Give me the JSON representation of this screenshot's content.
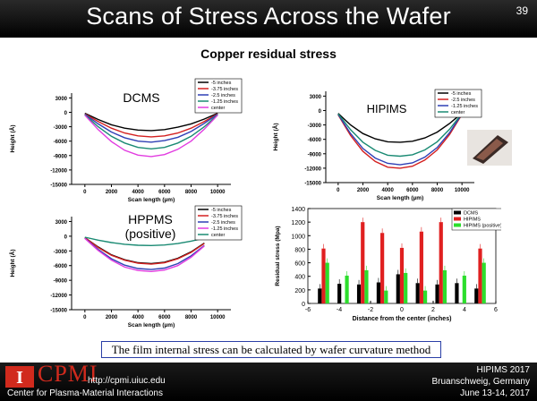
{
  "slide": {
    "title": "Scans of Stress Across the Wafer",
    "number": "39",
    "subtitle": "Copper residual stress",
    "caption": "The film internal stress can be calculated by wafer curvature method"
  },
  "footer": {
    "org": "CPMI",
    "url": "http://cpmi.uiuc.edu",
    "center_name": "Center for Plasma-Material Interactions",
    "conf_line1": "HIPIMS 2017",
    "conf_line2": "Bruanschweig, Germany",
    "conf_line3": "June 13-14, 2017"
  },
  "colors": {
    "header_bg": "#000000",
    "cpmi_red": "#d12a1d",
    "caption_border": "#2a3fa6"
  },
  "chart_data": [
    {
      "id": "dcms",
      "type": "line",
      "title": "DCMS",
      "xlabel": "Scan length (µm)",
      "ylabel": "Height (Å)",
      "xlim": [
        -1000,
        11000
      ],
      "ylim": [
        -15000,
        4000
      ],
      "xticks": [
        "0",
        "2000",
        "4000",
        "6000",
        "8000",
        "10000"
      ],
      "yticks": [
        "3000",
        "0",
        "-3000",
        "-6000",
        "-9000",
        "-12000",
        "-15000"
      ],
      "legend": [
        "-5 inches",
        "-3.75 inches",
        "-2.5 inches",
        "-1.25 inches",
        "center"
      ],
      "series": [
        {
          "name": "-5 inches",
          "color": "#000000",
          "x": [
            0,
            1000,
            2000,
            3000,
            4000,
            5000,
            6000,
            7000,
            8000,
            9000,
            10000
          ],
          "y": [
            -200,
            -1500,
            -2600,
            -3300,
            -3700,
            -3800,
            -3600,
            -3100,
            -2400,
            -1400,
            -200
          ]
        },
        {
          "name": "-3.75 inches",
          "color": "#d42020",
          "x": [
            0,
            1000,
            2000,
            3000,
            4000,
            5000,
            6000,
            7000,
            8000,
            9000,
            10000
          ],
          "y": [
            -300,
            -1900,
            -3300,
            -4300,
            -4900,
            -5100,
            -4900,
            -4300,
            -3300,
            -1900,
            -300
          ]
        },
        {
          "name": "-2.5 inches",
          "color": "#2f3fb5",
          "x": [
            0,
            1000,
            2000,
            3000,
            4000,
            5000,
            6000,
            7000,
            8000,
            9000,
            10000
          ],
          "y": [
            -400,
            -2400,
            -4100,
            -5300,
            -6000,
            -6200,
            -5900,
            -5200,
            -4000,
            -2300,
            -400
          ]
        },
        {
          "name": "-1.25 inches",
          "color": "#1a8a73",
          "x": [
            0,
            1000,
            2000,
            3000,
            4000,
            5000,
            6000,
            7000,
            8000,
            9000,
            10000
          ],
          "y": [
            -500,
            -3000,
            -5000,
            -6400,
            -7300,
            -7600,
            -7300,
            -6400,
            -5000,
            -3000,
            -500
          ]
        },
        {
          "name": "center",
          "color": "#e23ce0",
          "x": [
            0,
            1000,
            2000,
            3000,
            4000,
            5000,
            6000,
            7000,
            8000,
            9000,
            10000
          ],
          "y": [
            -600,
            -3600,
            -6100,
            -7900,
            -8900,
            -9200,
            -8800,
            -7700,
            -6000,
            -3500,
            -600
          ]
        }
      ]
    },
    {
      "id": "hipims",
      "type": "line",
      "title": "HIPIMS",
      "xlabel": "Scan length (µm)",
      "ylabel": "Height (Å)",
      "xlim": [
        -1000,
        11000
      ],
      "ylim": [
        -15000,
        4000
      ],
      "xticks": [
        "0",
        "2000",
        "4000",
        "6000",
        "8000",
        "10000"
      ],
      "yticks": [
        "3000",
        "0",
        "-3000",
        "-6000",
        "-9000",
        "-12000",
        "-15000"
      ],
      "legend": [
        "-5 inches",
        "-2.5 inches",
        "-1.25 inches",
        "center"
      ],
      "series": [
        {
          "name": "-5 inches",
          "color": "#000000",
          "x": [
            0,
            1000,
            2000,
            3000,
            4000,
            5000,
            6000,
            7000,
            8000,
            9000,
            10000
          ],
          "y": [
            -600,
            -3000,
            -4800,
            -5900,
            -6500,
            -6600,
            -6400,
            -5700,
            -4500,
            -2700,
            -500
          ]
        },
        {
          "name": "-2.5 inches",
          "color": "#d42020",
          "x": [
            0,
            1000,
            2000,
            3000,
            4000,
            5000,
            6000,
            7000,
            8000,
            9000,
            10000
          ],
          "y": [
            -900,
            -5200,
            -8500,
            -10600,
            -11800,
            -12000,
            -11600,
            -10300,
            -8200,
            -5000,
            -800
          ]
        },
        {
          "name": "-1.25 inches",
          "color": "#2f3fb5",
          "x": [
            0,
            1000,
            2000,
            3000,
            4000,
            5000,
            6000,
            7000,
            8000,
            9000,
            10000
          ],
          "y": [
            -800,
            -4800,
            -7900,
            -9900,
            -11000,
            -11300,
            -10900,
            -9700,
            -7700,
            -4600,
            -700
          ]
        },
        {
          "name": "center",
          "color": "#1a8a73",
          "x": [
            0,
            1000,
            2000,
            3000,
            4000,
            5000,
            6000,
            7000,
            8000,
            9000,
            10000
          ],
          "y": [
            -700,
            -4000,
            -6600,
            -8300,
            -9300,
            -9500,
            -9200,
            -8200,
            -6500,
            -3900,
            -600
          ]
        }
      ]
    },
    {
      "id": "hppms",
      "type": "line",
      "title": "HPPMS (positive)",
      "xlabel": "Scan length (µm)",
      "ylabel": "Height (Å)",
      "xlim": [
        -1000,
        11000
      ],
      "ylim": [
        -15000,
        4000
      ],
      "xticks": [
        "0",
        "2000",
        "4000",
        "6000",
        "8000",
        "10000"
      ],
      "yticks": [
        "3000",
        "0",
        "-3000",
        "-6000",
        "-9000",
        "-12000",
        "-15000"
      ],
      "legend": [
        "-5 inches",
        "-3.75 inches",
        "-2.5 inches",
        "-1.25 inches",
        "center"
      ],
      "series": [
        {
          "name": "-5 inches",
          "color": "#000000",
          "x": [
            0,
            1000,
            2000,
            3000,
            4000,
            5000,
            6000,
            7000,
            8000,
            9000
          ],
          "y": [
            -300,
            -2200,
            -3800,
            -4800,
            -5400,
            -5600,
            -5300,
            -4500,
            -3200,
            -1400
          ]
        },
        {
          "name": "-3.75 inches",
          "color": "#d42020",
          "x": [
            0,
            1000,
            2000,
            3000,
            4000,
            5000,
            6000,
            7000,
            8000,
            9000
          ],
          "y": [
            -300,
            -2300,
            -3900,
            -4900,
            -5500,
            -5700,
            -5400,
            -4600,
            -3300,
            -1500
          ]
        },
        {
          "name": "-2.5 inches",
          "color": "#2f3fb5",
          "x": [
            0,
            1000,
            2000,
            3000,
            4000,
            5000,
            6000,
            7000,
            8000,
            9000
          ],
          "y": [
            -400,
            -2700,
            -4600,
            -5900,
            -6600,
            -6800,
            -6500,
            -5600,
            -4000,
            -1900
          ]
        },
        {
          "name": "-1.25 inches",
          "color": "#e23ce0",
          "x": [
            0,
            1000,
            2000,
            3000,
            4000,
            5000,
            6000,
            7000,
            8000,
            9000
          ],
          "y": [
            -450,
            -2900,
            -4900,
            -6300,
            -7000,
            -7200,
            -6900,
            -6000,
            -4300,
            -2000
          ]
        },
        {
          "name": "center",
          "color": "#1a8a73",
          "x": [
            0,
            1000,
            2000,
            3000,
            4000,
            5000,
            6000,
            7000,
            8000,
            9000
          ],
          "y": [
            -200,
            -800,
            -1300,
            -1650,
            -1850,
            -1900,
            -1800,
            -1500,
            -1000,
            -400
          ]
        }
      ]
    },
    {
      "id": "residual_stress",
      "type": "bar",
      "xlabel": "Distance from the center (inches)",
      "ylabel": "Residual stress (Mpa)",
      "xlim": [
        -6,
        6
      ],
      "ylim": [
        0,
        1400
      ],
      "xticks": [
        "-6",
        "-4",
        "-2",
        "0",
        "2",
        "4",
        "6"
      ],
      "yticks": [
        "0",
        "200",
        "400",
        "600",
        "800",
        "1000",
        "1200",
        "1400"
      ],
      "legend_position": "top-right",
      "x": [
        -5,
        -3.75,
        -2.5,
        -1.25,
        0,
        1.25,
        2.5,
        3.75,
        5
      ],
      "series": [
        {
          "name": "DCMS",
          "color": "#000000",
          "values": [
            220,
            290,
            280,
            310,
            430,
            300,
            280,
            300,
            220
          ]
        },
        {
          "name": "HIPIMS",
          "color": "#e02020",
          "values": [
            810,
            null,
            1200,
            1040,
            820,
            1060,
            1200,
            null,
            810
          ]
        },
        {
          "name": "HIPIMS (positive)",
          "color": "#2cde2c",
          "values": [
            600,
            410,
            490,
            190,
            450,
            190,
            490,
            410,
            600
          ]
        }
      ]
    }
  ]
}
